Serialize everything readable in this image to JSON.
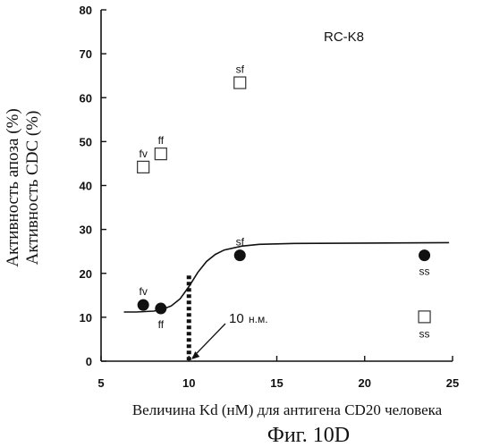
{
  "chart_data": {
    "type": "scatter",
    "title": "",
    "series_tag": "RC-K8",
    "xlabel": "Величина Kd (нМ) для антигена CD20 человека",
    "ylabel_lines": [
      "Активность апоза (%)",
      "Активность CDC (%)"
    ],
    "caption": "Фиг. 10D",
    "xlim": [
      5,
      25
    ],
    "ylim": [
      0,
      80
    ],
    "xticks": [
      5,
      10,
      15,
      20,
      25
    ],
    "yticks": [
      0,
      10,
      20,
      30,
      40,
      50,
      60,
      70,
      80
    ],
    "grid": false,
    "series": [
      {
        "marker": "filled-circle",
        "points": [
          {
            "label": "fv",
            "x": 7.4,
            "y": 12.8
          },
          {
            "label": "ff",
            "x": 8.4,
            "y": 12.0
          },
          {
            "label": "sf",
            "x": 12.9,
            "y": 24.1
          },
          {
            "label": "ss",
            "x": 23.4,
            "y": 24.1
          }
        ]
      },
      {
        "marker": "open-square",
        "points": [
          {
            "label": "fv",
            "x": 7.4,
            "y": 44.2
          },
          {
            "label": "ff",
            "x": 8.4,
            "y": 47.2
          },
          {
            "label": "sf",
            "x": 12.9,
            "y": 63.4
          },
          {
            "label": "ss",
            "x": 23.4,
            "y": 10.1
          }
        ]
      }
    ],
    "fit_curve": [
      [
        6.3,
        11.2
      ],
      [
        7.0,
        11.2
      ],
      [
        7.5,
        11.3
      ],
      [
        8.0,
        11.4
      ],
      [
        8.5,
        11.8
      ],
      [
        9.0,
        12.6
      ],
      [
        9.5,
        14.2
      ],
      [
        10.0,
        17.0
      ],
      [
        10.5,
        20.2
      ],
      [
        11.0,
        22.7
      ],
      [
        11.5,
        24.3
      ],
      [
        12.0,
        25.3
      ],
      [
        13.0,
        26.2
      ],
      [
        14.0,
        26.6
      ],
      [
        16.0,
        26.8
      ],
      [
        20.0,
        26.9
      ],
      [
        24.8,
        27.0
      ]
    ],
    "threshold": {
      "x": 10,
      "y_top": 19.5,
      "label": "10",
      "label_unit": "н.м."
    }
  }
}
